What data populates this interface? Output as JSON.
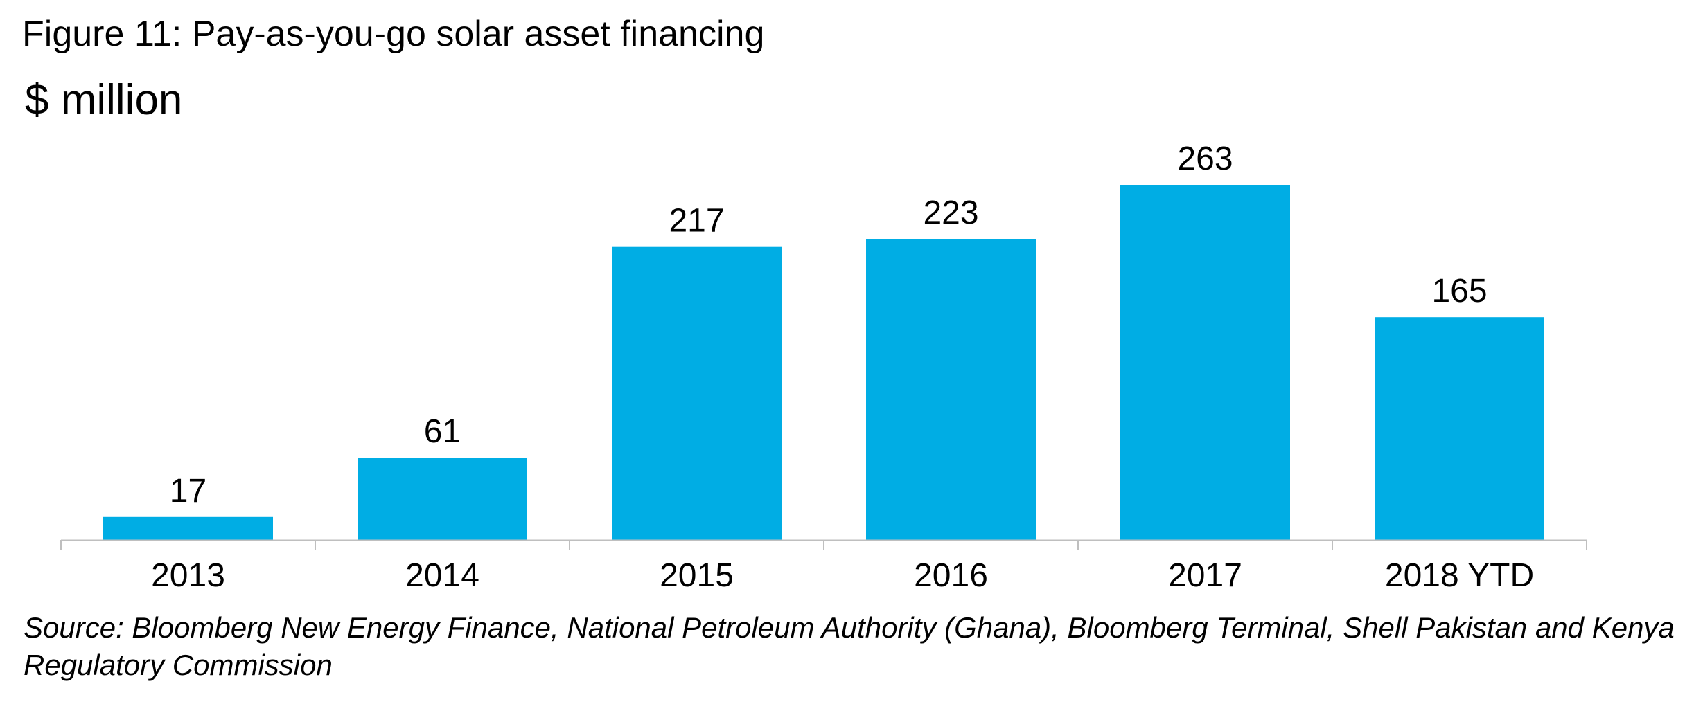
{
  "figure_title": "Figure 11: Pay-as-you-go solar asset financing",
  "source_note": "Source: Bloomberg New Energy Finance, National Petroleum Authority (Ghana), Bloomberg Terminal, Shell Pakistan and Kenya Regulatory Commission",
  "chart_data": {
    "type": "bar",
    "title": "",
    "ylabel": "$ million",
    "xlabel": "",
    "categories": [
      "2013",
      "2014",
      "2015",
      "2016",
      "2017",
      "2018 YTD"
    ],
    "values": [
      17,
      61,
      217,
      223,
      263,
      165
    ],
    "data_labels": [
      "17",
      "61",
      "217",
      "223",
      "263",
      "165"
    ],
    "ylim": [
      0,
      263
    ],
    "grid": false,
    "legend": "none",
    "bar_color": "#00ADE4",
    "axis_color": "#BFBFBF"
  }
}
